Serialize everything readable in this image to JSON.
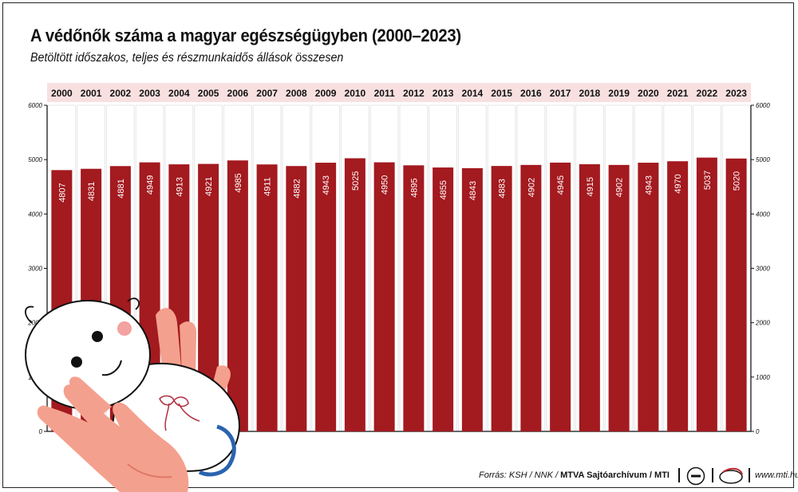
{
  "title": "A védőnők száma a magyar egészségügyben (2000–2023)",
  "subtitle": "Betöltött időszakos, teljes és részmunkaidős állások összesen",
  "source": {
    "prefix": "Forrás: KSH / NNK / ",
    "agency": "MTVA Sajtóarchívum / MTI"
  },
  "website": "www.mti.hu",
  "colors": {
    "bar": "#a31a1f",
    "year_band": "#f8e0e0",
    "bar_label": "#ffffff"
  },
  "chart_data": {
    "type": "bar",
    "categories": [
      "2000",
      "2001",
      "2002",
      "2003",
      "2004",
      "2005",
      "2006",
      "2007",
      "2008",
      "2009",
      "2010",
      "2011",
      "2012",
      "2013",
      "2014",
      "2015",
      "2016",
      "2017",
      "2018",
      "2019",
      "2020",
      "2021",
      "2022",
      "2023"
    ],
    "values": [
      4807,
      4831,
      4881,
      4949,
      4913,
      4921,
      4985,
      4911,
      4882,
      4943,
      5025,
      4950,
      4895,
      4855,
      4843,
      4883,
      4902,
      4945,
      4915,
      4902,
      4943,
      4970,
      5037,
      5020
    ],
    "title": "A védőnők száma a magyar egészségügyben (2000–2023)",
    "ylim": [
      0,
      6000
    ],
    "yticks": [
      0,
      1000,
      2000,
      3000,
      4000,
      5000,
      6000
    ],
    "grid": false,
    "legend": "none"
  }
}
